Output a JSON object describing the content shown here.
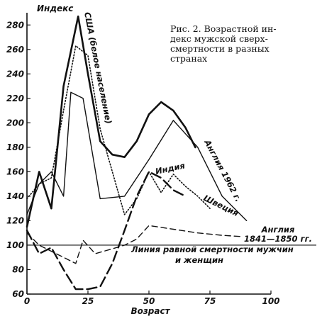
{
  "caption": {
    "lines": [
      "Рис. 2. Возрастной ин-",
      "декс мужской сверх-",
      "смертности в разных",
      "странах"
    ]
  },
  "chart_data": {
    "type": "line",
    "title": "",
    "xlabel": "Возраст",
    "ylabel": "Индекс",
    "xlim": [
      0,
      100
    ],
    "ylim": [
      60,
      290
    ],
    "x_ticks": [
      0,
      25,
      50,
      75,
      100
    ],
    "y_ticks": [
      60,
      80,
      100,
      120,
      140,
      160,
      180,
      200,
      220,
      240,
      260,
      280
    ],
    "grid": false,
    "series": [
      {
        "name": "США (белое население)",
        "style": "solid-thick",
        "points": [
          [
            0,
            115
          ],
          [
            5,
            160
          ],
          [
            10,
            130
          ],
          [
            15,
            230
          ],
          [
            21,
            287
          ],
          [
            25,
            240
          ],
          [
            30,
            185
          ],
          [
            35,
            174
          ],
          [
            40,
            172
          ],
          [
            45,
            185
          ],
          [
            50,
            207
          ],
          [
            55,
            217
          ],
          [
            60,
            210
          ],
          [
            65,
            196
          ],
          [
            69,
            180
          ]
        ]
      },
      {
        "name": "Англия 1962 г.",
        "style": "solid-thin",
        "points": [
          [
            0,
            125
          ],
          [
            5,
            150
          ],
          [
            10,
            160
          ],
          [
            15,
            140
          ],
          [
            18,
            225
          ],
          [
            23,
            220
          ],
          [
            30,
            138
          ],
          [
            40,
            140
          ],
          [
            50,
            170
          ],
          [
            60,
            202
          ],
          [
            70,
            180
          ],
          [
            80,
            140
          ],
          [
            90,
            120
          ]
        ]
      },
      {
        "name": "Швеция",
        "style": "dotted",
        "points": [
          [
            0,
            138
          ],
          [
            5,
            150
          ],
          [
            10,
            155
          ],
          [
            15,
            210
          ],
          [
            20,
            263
          ],
          [
            25,
            255
          ],
          [
            30,
            195
          ],
          [
            40,
            125
          ],
          [
            45,
            138
          ],
          [
            50,
            160
          ],
          [
            55,
            143
          ],
          [
            60,
            158
          ],
          [
            65,
            148
          ],
          [
            70,
            140
          ],
          [
            75,
            130
          ]
        ]
      },
      {
        "name": "Индия",
        "style": "dashed-thick",
        "points": [
          [
            0,
            112
          ],
          [
            5,
            93
          ],
          [
            10,
            98
          ],
          [
            15,
            80
          ],
          [
            20,
            64
          ],
          [
            25,
            64
          ],
          [
            30,
            66
          ],
          [
            35,
            85
          ],
          [
            40,
            112
          ],
          [
            45,
            140
          ],
          [
            50,
            160
          ],
          [
            55,
            155
          ],
          [
            60,
            145
          ],
          [
            65,
            140
          ]
        ]
      },
      {
        "name": "Англия 1841—1850 гг.",
        "style": "dashed-thin",
        "points": [
          [
            0,
            110
          ],
          [
            5,
            100
          ],
          [
            10,
            95
          ],
          [
            15,
            90
          ],
          [
            20,
            85
          ],
          [
            23,
            104
          ],
          [
            28,
            93
          ],
          [
            35,
            97
          ],
          [
            40,
            100
          ],
          [
            45,
            105
          ],
          [
            50,
            116
          ],
          [
            60,
            113
          ],
          [
            70,
            110
          ],
          [
            80,
            108
          ],
          [
            88,
            107
          ]
        ]
      }
    ],
    "reference_line": {
      "y": 100,
      "label": [
        "Линия равной смертности мужчин",
        "и женщин"
      ]
    }
  }
}
